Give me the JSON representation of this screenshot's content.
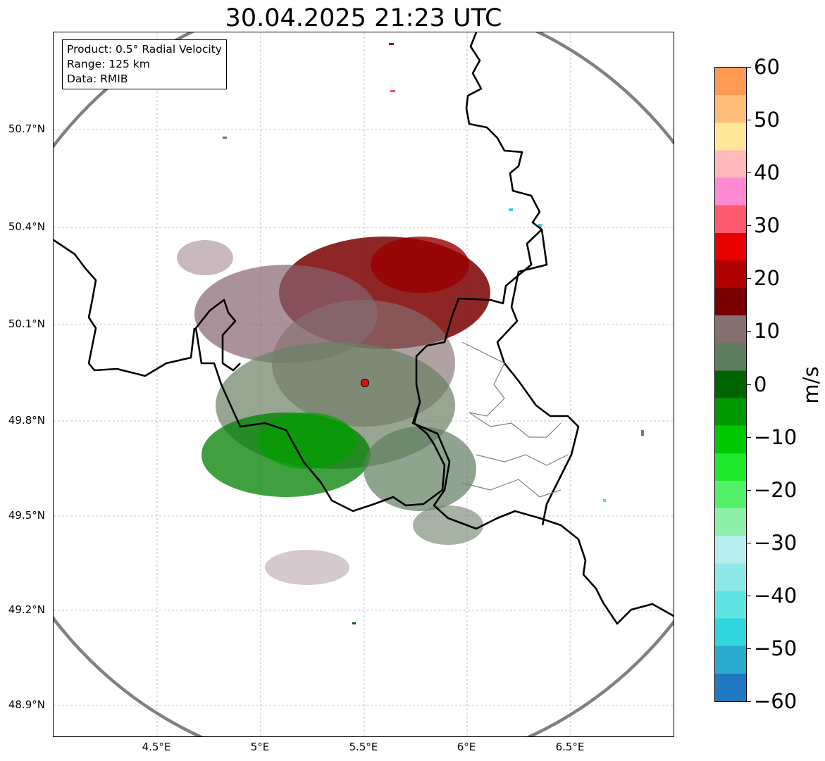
{
  "title": "30.04.2025 21:23 UTC",
  "info": {
    "product": "Product: 0.5° Radial Velocity",
    "range": "Range: 125 km",
    "source": "Data: RMIB"
  },
  "axes": {
    "lat_ticks": [
      "50.7°N",
      "50.4°N",
      "50.1°N",
      "49.8°N",
      "49.5°N",
      "49.2°N",
      "48.9°N"
    ],
    "lon_ticks": [
      "4.5°E",
      "5°E",
      "5.5°E",
      "6°E",
      "6.5°E"
    ]
  },
  "colorbar": {
    "unit": "m/s",
    "ticks": [
      "60",
      "50",
      "40",
      "30",
      "20",
      "10",
      "0",
      "−10",
      "−20",
      "−30",
      "−40",
      "−50",
      "−60"
    ],
    "stops": [
      "#1f78c1",
      "#2aa9cf",
      "#30d6db",
      "#5fe2e2",
      "#8fe8e8",
      "#b6eded",
      "#8ef0a8",
      "#55f06a",
      "#1ee82a",
      "#00c800",
      "#009800",
      "#006400",
      "#5e7d5e",
      "#857070",
      "#7a0000",
      "#b00000",
      "#e60000",
      "#ff5a6e",
      "#ff8ad2",
      "#ffb9b9",
      "#ffe79a",
      "#ffbd7a",
      "#ff9a55"
    ]
  },
  "radar_site": {
    "lon": 5.505,
    "lat": 49.914,
    "color": "#dd1111"
  }
}
